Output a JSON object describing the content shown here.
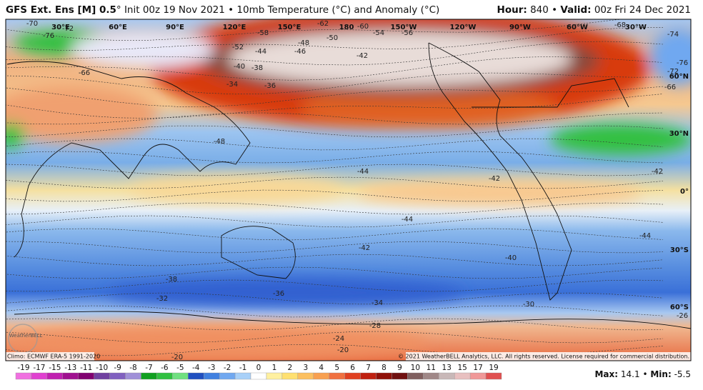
{
  "header": {
    "title_bold": "GFS Ext.  Ens [M] 0.5",
    "title_rest": "° Init 00z 19 Nov 2021 • 10mb Temperature (°C) and Anomaly (°C)",
    "hour_label": "Hour:",
    "hour_value": "840 •",
    "valid_label": "Valid:",
    "valid_value": "00z Fri 24 Dec 2021"
  },
  "map": {
    "longitudes": [
      "30°E",
      "60°E",
      "90°E",
      "120°E",
      "150°E",
      "180",
      "150°W",
      "120°W",
      "90°W",
      "60°W",
      "30°W"
    ],
    "latitudes": [
      "60°N",
      "30°N",
      "0°",
      "30°S",
      "60°S"
    ],
    "contours": [
      -70,
      -72,
      -76,
      -66,
      -58,
      -52,
      -62,
      -60,
      -54,
      -56,
      -50,
      -48,
      -46,
      -44,
      -40,
      -38,
      -34,
      -36,
      -42,
      -68,
      -74,
      -76,
      -72,
      -66,
      -48,
      -44,
      -42,
      -42,
      -44,
      -42,
      -40,
      -44,
      -38,
      -32,
      -36,
      -34,
      -30,
      -28,
      -26,
      -24,
      -20,
      -20
    ],
    "logo": "WeatherBELL",
    "climo": "Climo: ECMWF ERA-5 1991-2020",
    "copyright": "© 2021 WeatherBELL Analytics, LLC. All rights reserved. License required for commercial distribution."
  },
  "legend": {
    "labels": [
      -19,
      -17,
      -15,
      -13,
      -11,
      -10,
      -9,
      -8,
      -7,
      -6,
      -5,
      -4,
      -3,
      -2,
      -1,
      0,
      1,
      2,
      3,
      4,
      5,
      6,
      7,
      8,
      9,
      10,
      11,
      13,
      15,
      17,
      19
    ],
    "colors": [
      "#f070e0",
      "#e040d0",
      "#c020b0",
      "#a01090",
      "#800070",
      "#7040a0",
      "#8060c0",
      "#a090d8",
      "#10a020",
      "#30c040",
      "#70e080",
      "#2050c0",
      "#4080e0",
      "#70a8f0",
      "#a8d0f8",
      "#ffffff",
      "#fff0a0",
      "#ffe070",
      "#fcc060",
      "#f8a050",
      "#f07040",
      "#e04020",
      "#c02010",
      "#901008",
      "#701010",
      "#806060",
      "#a08888",
      "#c8b8b8",
      "#e8c0c0",
      "#f09898",
      "#e05050"
    ]
  },
  "footer": {
    "max_label": "Max:",
    "max_value": 14.1,
    "sep": "•",
    "min_label": "Min:",
    "min_value": -5.5
  }
}
